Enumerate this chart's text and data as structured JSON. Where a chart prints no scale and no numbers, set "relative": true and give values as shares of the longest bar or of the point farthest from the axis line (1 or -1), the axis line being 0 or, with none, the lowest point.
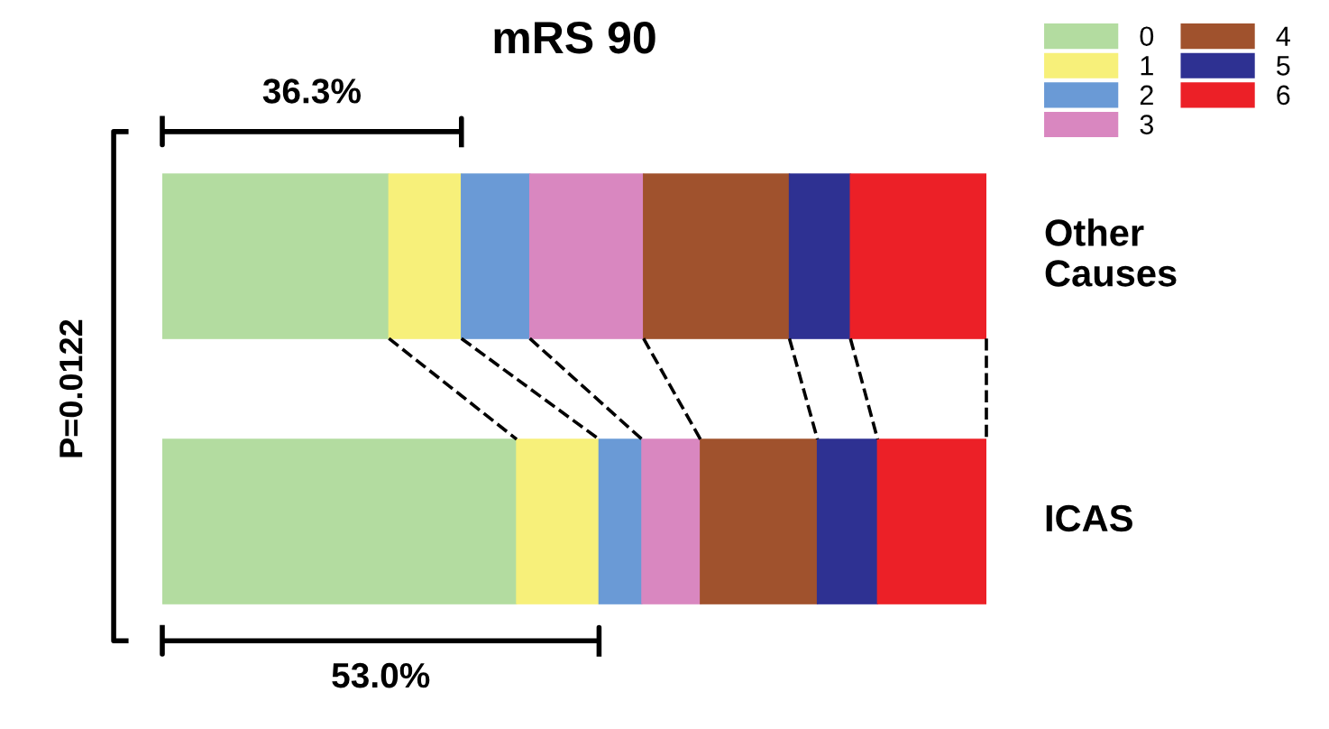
{
  "chart_data": {
    "type": "bar",
    "orientation": "horizontal",
    "stacked": true,
    "relative": true,
    "title": "mRS 90",
    "categories": [
      "Other Causes",
      "ICAS"
    ],
    "series": [
      {
        "name": "0",
        "color": "#b3dca0",
        "values": [
          0.275,
          0.43
        ]
      },
      {
        "name": "1",
        "color": "#f7f07a",
        "values": [
          0.088,
          0.1
        ]
      },
      {
        "name": "2",
        "color": "#6a9ad6",
        "values": [
          0.083,
          0.052
        ]
      },
      {
        "name": "3",
        "color": "#d987c0",
        "values": [
          0.138,
          0.071
        ]
      },
      {
        "name": "4",
        "color": "#a0522d",
        "values": [
          0.177,
          0.142
        ]
      },
      {
        "name": "5",
        "color": "#2e3192",
        "values": [
          0.074,
          0.073
        ]
      },
      {
        "name": "6",
        "color": "#ec2027",
        "values": [
          0.165,
          0.132
        ]
      }
    ],
    "annotations": [
      "36.3%",
      "53.0%",
      "P=0.0122"
    ],
    "legend": "top right"
  }
}
